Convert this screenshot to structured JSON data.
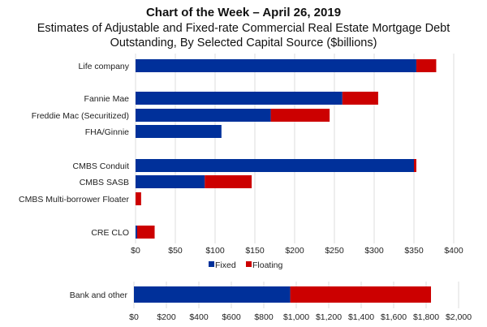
{
  "chart_data": [
    {
      "type": "bar",
      "orientation": "horizontal",
      "stacked": true,
      "title": "Chart of the Week – April 26, 2019",
      "subtitle_lines": [
        "Estimates of Adjustable and Fixed-rate Commercial Real Estate Mortgage Debt",
        "Outstanding, By Selected Capital Source ($billions)"
      ],
      "categories": [
        "Life company",
        "Fannie Mae",
        "Freddie Mac (Securitized)",
        "FHA/Ginnie",
        "CMBS Conduit",
        "CMBS SASB",
        "CMBS Multi-borrower Floater",
        "CRE CLO"
      ],
      "series": [
        {
          "name": "Fixed",
          "color": "#00309a",
          "values": [
            353,
            260,
            170,
            108,
            350,
            87,
            0,
            2
          ]
        },
        {
          "name": "Floating",
          "color": "#cc0000",
          "values": [
            25,
            45,
            74,
            0,
            3,
            59,
            7,
            22
          ]
        }
      ],
      "xlim": [
        0,
        400
      ],
      "xticks": [
        "$0",
        "$50",
        "$100",
        "$150",
        "$200",
        "$250",
        "$300",
        "$350",
        "$400"
      ],
      "grid": true,
      "legend": "bottom"
    },
    {
      "type": "bar",
      "orientation": "horizontal",
      "stacked": true,
      "categories": [
        "Bank and other"
      ],
      "series": [
        {
          "name": "Fixed",
          "color": "#00309a",
          "values": [
            963
          ]
        },
        {
          "name": "Floating",
          "color": "#cc0000",
          "values": [
            867
          ]
        }
      ],
      "xlim": [
        0,
        2000
      ],
      "xticks": [
        "$0",
        "$200",
        "$400",
        "$600",
        "$800",
        "$1,000",
        "$1,200",
        "$1,400",
        "$1,600",
        "$1,800",
        "$2,000"
      ],
      "grid": true
    }
  ]
}
